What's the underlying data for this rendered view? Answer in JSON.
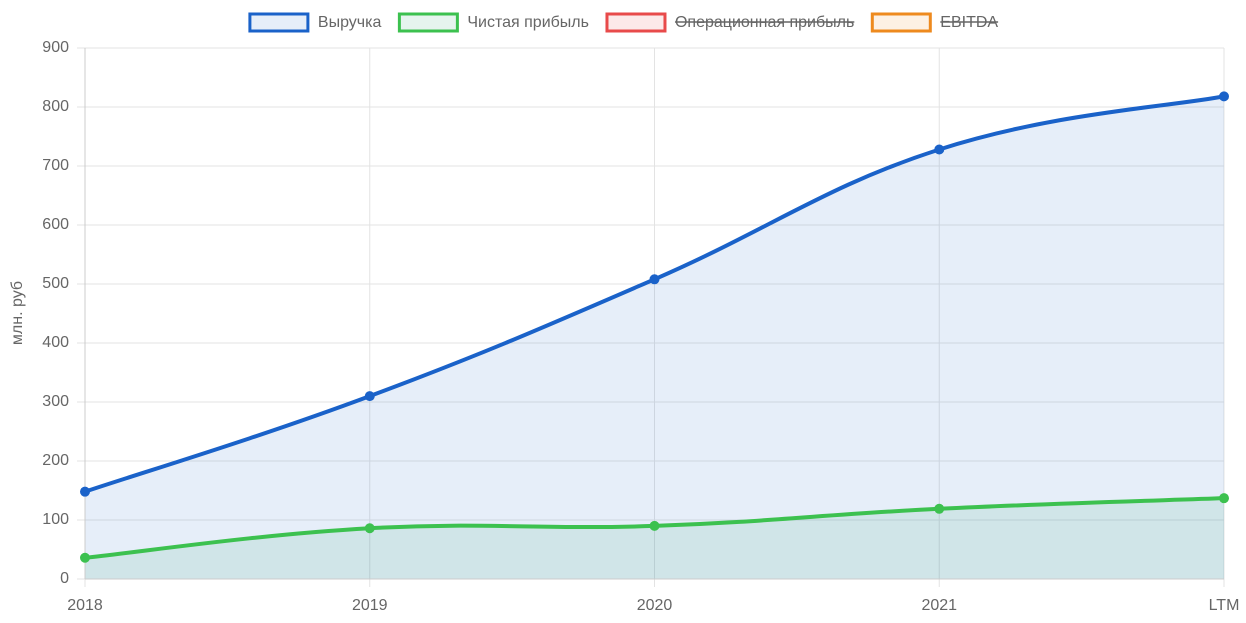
{
  "chart_data": {
    "type": "line",
    "y_label": "млн. руб",
    "categories": [
      "2018",
      "2019",
      "2020",
      "2021",
      "LTM"
    ],
    "series": [
      {
        "name": "Выручка",
        "color": "#1a62c9",
        "fill_color": "rgba(26,98,201,0.11)",
        "hidden": false,
        "values": [
          148,
          310,
          508,
          728,
          818
        ]
      },
      {
        "name": "Чистая прибыль",
        "color": "#3cc14f",
        "fill_color": "rgba(60,170,120,0.13)",
        "hidden": false,
        "values": [
          36,
          86,
          90,
          119,
          137
        ]
      },
      {
        "name": "Операционная прибыль",
        "color": "#e84a4a",
        "fill_color": "rgba(232,74,74,0.12)",
        "hidden": true,
        "values": [
          null,
          null,
          null,
          null,
          null
        ]
      },
      {
        "name": "EBITDA",
        "color": "#ee8a1e",
        "fill_color": "rgba(238,138,30,0.12)",
        "hidden": true,
        "values": [
          null,
          null,
          null,
          null,
          null
        ]
      }
    ],
    "ylim": [
      0,
      900
    ],
    "yticks": [
      0,
      100,
      200,
      300,
      400,
      500,
      600,
      700,
      800,
      900
    ],
    "grid": true,
    "legend": "top"
  }
}
